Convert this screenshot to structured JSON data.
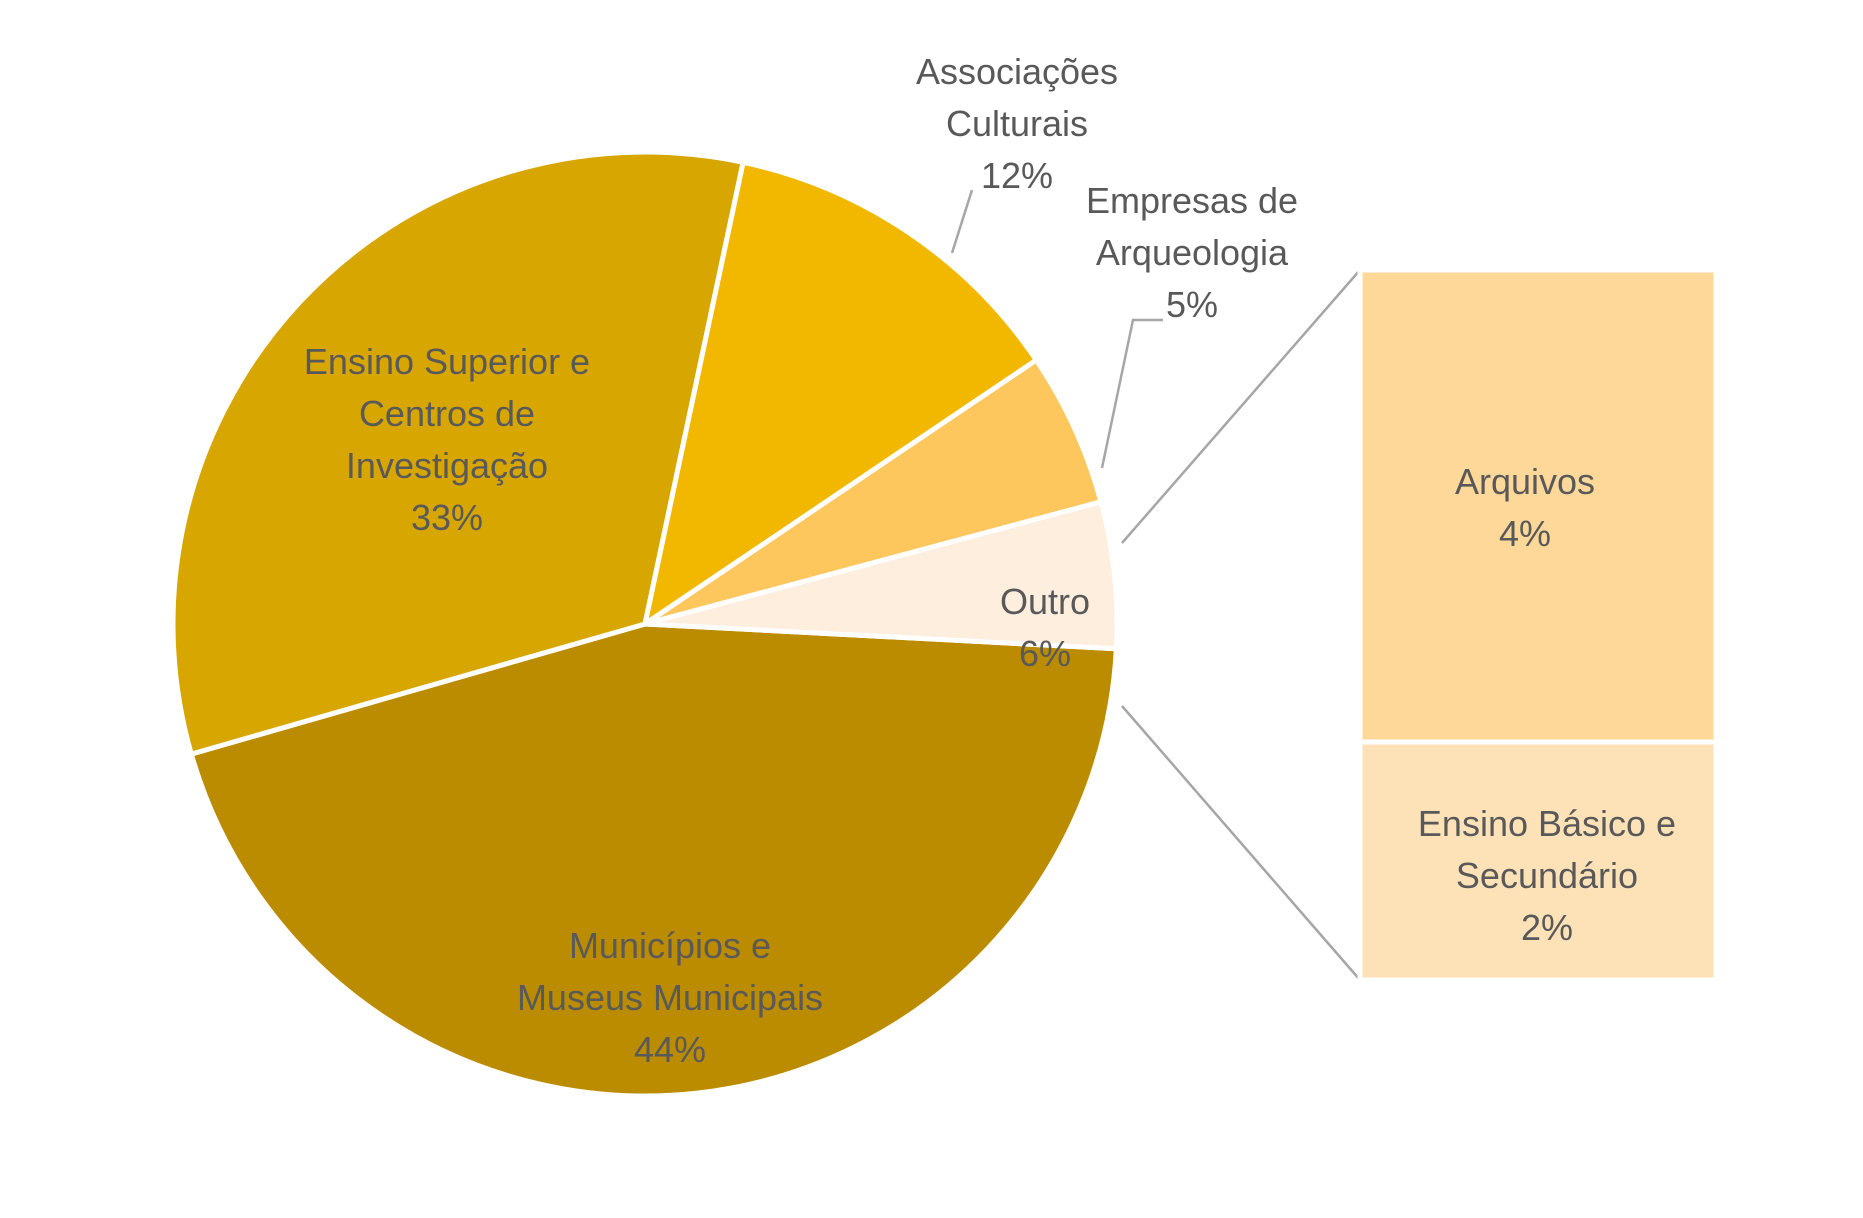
{
  "chart_data": {
    "type": "pie",
    "subtype": "pie-of-pie (bar of pie)",
    "title": "",
    "colors": {
      "text": "#595959",
      "leader_line": "#a6a6a6",
      "separator": "#ffffff"
    },
    "slices": [
      {
        "label_lines": [
          "Municípios e",
          "Museus Municipais"
        ],
        "value": 44,
        "value_label": "44%",
        "color": "#bb8c00"
      },
      {
        "label_lines": [
          "Ensino Superior e",
          "Centros de",
          "Investigação"
        ],
        "value": 33,
        "value_label": "33%",
        "color": "#d8a600"
      },
      {
        "label_lines": [
          "Associações",
          "Culturais"
        ],
        "value": 12,
        "value_label": "12%",
        "color": "#f2b800"
      },
      {
        "label_lines": [
          "Empresas de",
          "Arqueologia"
        ],
        "value": 5,
        "value_label": "5%",
        "color": "#fec75e"
      },
      {
        "label_lines": [
          "Outro"
        ],
        "value": 6,
        "value_label": "6%",
        "color": "#fdeedd"
      }
    ],
    "breakdown": {
      "of_slice": "Outro",
      "type": "stacked-bar",
      "segments": [
        {
          "label_lines": [
            "Arquivos"
          ],
          "value": 4,
          "value_label": "4%",
          "color": "#fdd899"
        },
        {
          "label_lines": [
            "Ensino Básico e",
            "Secundário"
          ],
          "value": 2,
          "value_label": "2%",
          "color": "#fde2b8"
        }
      ]
    },
    "legend": "none",
    "grid": false
  }
}
